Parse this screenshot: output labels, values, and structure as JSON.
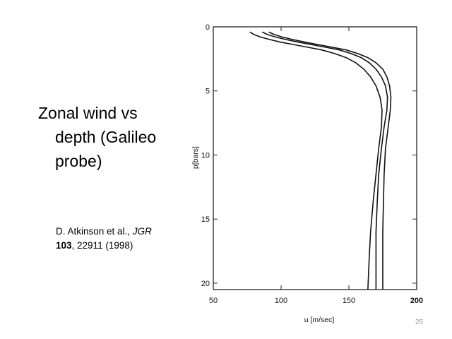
{
  "slide": {
    "title_lines": [
      "Zonal wind vs",
      "depth (Galileo",
      "probe)"
    ],
    "citation": {
      "authors": "D. Atkinson et al., ",
      "journal": "JGR",
      "volume": "103",
      "pages_year": ", 22911 (1998)"
    },
    "slide_number": "25"
  },
  "chart_data": {
    "type": "line",
    "title": "",
    "xlabel": "u [m/sec]",
    "ylabel": "p[bars]",
    "xlim": [
      50,
      200
    ],
    "ylim": [
      20.5,
      0
    ],
    "y_inverted": true,
    "xticks": [
      50,
      100,
      150,
      200
    ],
    "xtick_labels": [
      "50",
      "100",
      "150",
      "200"
    ],
    "yticks": [
      0,
      5,
      10,
      15,
      20
    ],
    "ytick_labels": [
      "0",
      "5",
      "10",
      "15",
      "20"
    ],
    "grid": false,
    "series": [
      {
        "x": [
          77,
          80,
          85,
          92,
          100,
          110,
          120,
          130,
          140,
          148,
          155,
          161,
          166,
          170,
          173,
          174.5,
          174,
          172,
          170,
          168,
          166,
          165,
          164
        ],
        "y": [
          0.4,
          0.6,
          0.8,
          1.0,
          1.2,
          1.4,
          1.6,
          1.8,
          2.1,
          2.4,
          2.8,
          3.3,
          3.9,
          4.6,
          5.5,
          6.5,
          7.8,
          9.5,
          11.5,
          13.5,
          16.0,
          18.0,
          20.5
        ]
      },
      {
        "x": [
          86,
          90,
          96,
          104,
          113,
          123,
          133,
          143,
          152,
          159,
          165,
          170,
          174,
          177,
          178.5,
          178,
          176,
          174,
          172,
          171,
          170,
          170,
          170
        ],
        "y": [
          0.4,
          0.6,
          0.8,
          1.0,
          1.2,
          1.4,
          1.6,
          1.8,
          2.1,
          2.4,
          2.8,
          3.3,
          3.9,
          4.6,
          5.5,
          6.5,
          7.8,
          9.5,
          11.5,
          13.5,
          16.0,
          18.0,
          20.5
        ]
      },
      {
        "x": [
          91,
          95,
          101,
          109,
          118,
          128,
          138,
          148,
          157,
          164,
          170,
          175,
          178,
          180,
          181,
          180.5,
          179,
          177,
          176,
          175.5,
          175,
          175,
          175
        ],
        "y": [
          0.4,
          0.6,
          0.8,
          1.0,
          1.2,
          1.4,
          1.6,
          1.8,
          2.1,
          2.4,
          2.8,
          3.3,
          3.9,
          4.6,
          5.5,
          6.5,
          7.8,
          9.5,
          11.5,
          13.5,
          16.0,
          18.0,
          20.5
        ]
      }
    ]
  }
}
